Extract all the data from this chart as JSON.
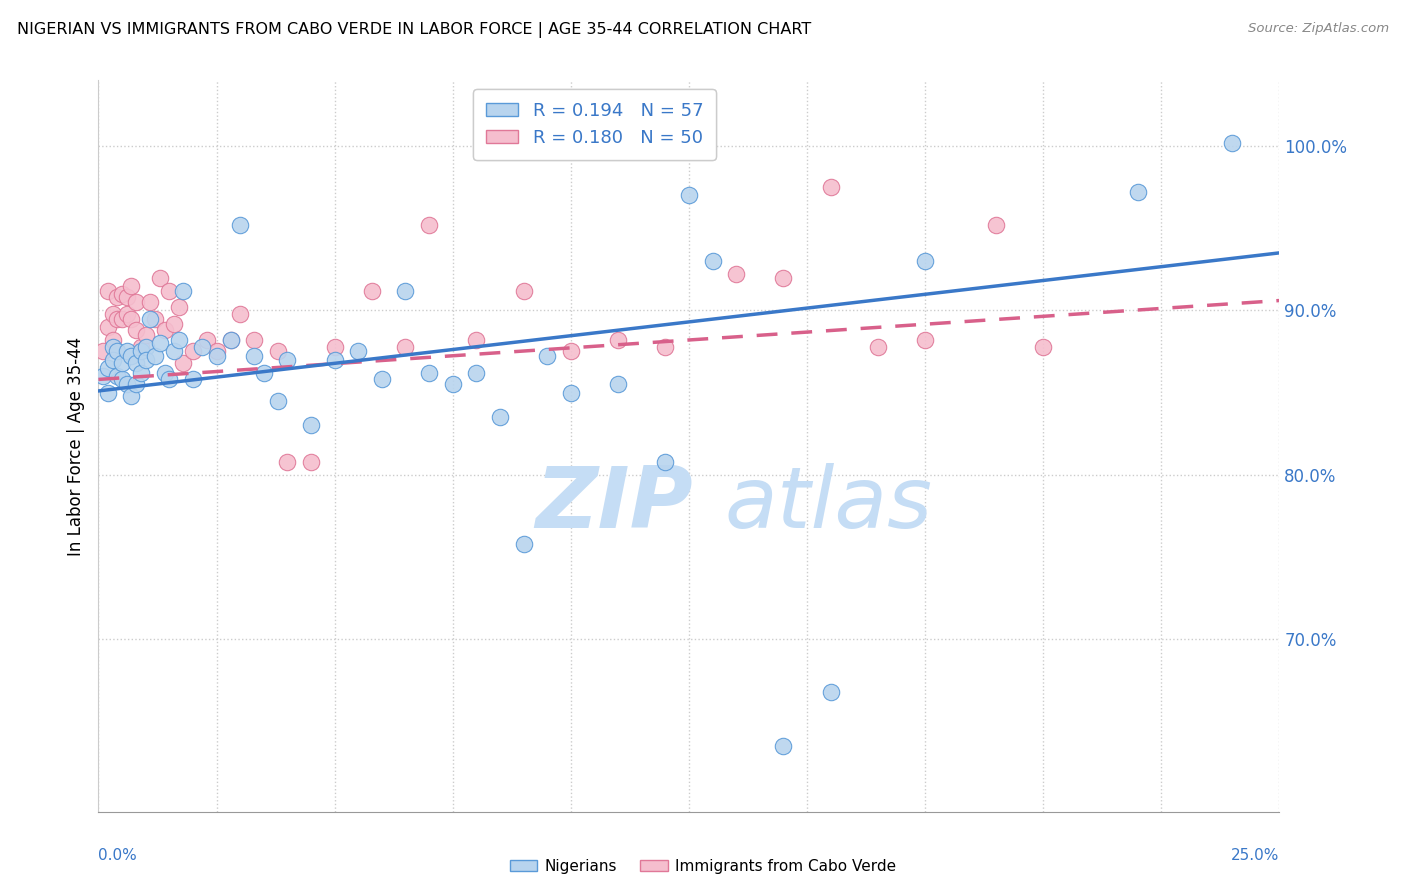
{
  "title": "NIGERIAN VS IMMIGRANTS FROM CABO VERDE IN LABOR FORCE | AGE 35-44 CORRELATION CHART",
  "source": "Source: ZipAtlas.com",
  "ylabel": "In Labor Force | Age 35-44",
  "xlim": [
    0.0,
    0.25
  ],
  "ylim": [
    0.595,
    1.04
  ],
  "yticks": [
    0.7,
    0.8,
    0.9,
    1.0
  ],
  "R_nigerian": 0.194,
  "N_nigerian": 57,
  "R_caboverde": 0.18,
  "N_caboverde": 50,
  "color_nigerian_face": "#b8d4ee",
  "color_nigerian_edge": "#5a9ad8",
  "color_caboverde_face": "#f5bece",
  "color_caboverde_edge": "#e07898",
  "line_color_nigerian": "#3a78c8",
  "line_color_caboverde": "#d8608a",
  "trend_nig_y0": 0.851,
  "trend_nig_y1": 0.935,
  "trend_cv_y0": 0.858,
  "trend_cv_y1": 0.906,
  "nigerian_x": [
    0.001,
    0.002,
    0.002,
    0.003,
    0.003,
    0.004,
    0.004,
    0.005,
    0.005,
    0.006,
    0.006,
    0.007,
    0.007,
    0.008,
    0.008,
    0.009,
    0.009,
    0.01,
    0.01,
    0.011,
    0.012,
    0.013,
    0.014,
    0.015,
    0.016,
    0.017,
    0.018,
    0.02,
    0.022,
    0.025,
    0.028,
    0.03,
    0.033,
    0.035,
    0.038,
    0.04,
    0.045,
    0.05,
    0.055,
    0.06,
    0.065,
    0.07,
    0.075,
    0.08,
    0.085,
    0.09,
    0.095,
    0.1,
    0.11,
    0.12,
    0.125,
    0.13,
    0.145,
    0.155,
    0.175,
    0.22,
    0.24
  ],
  "nigerian_y": [
    0.86,
    0.865,
    0.85,
    0.878,
    0.87,
    0.86,
    0.875,
    0.858,
    0.868,
    0.855,
    0.875,
    0.848,
    0.872,
    0.855,
    0.868,
    0.875,
    0.862,
    0.878,
    0.87,
    0.895,
    0.872,
    0.88,
    0.862,
    0.858,
    0.875,
    0.882,
    0.912,
    0.858,
    0.878,
    0.872,
    0.882,
    0.952,
    0.872,
    0.862,
    0.845,
    0.87,
    0.83,
    0.87,
    0.875,
    0.858,
    0.912,
    0.862,
    0.855,
    0.862,
    0.835,
    0.758,
    0.872,
    0.85,
    0.855,
    0.808,
    0.97,
    0.93,
    0.635,
    0.668,
    0.93,
    0.972,
    1.002
  ],
  "caboverde_x": [
    0.001,
    0.002,
    0.002,
    0.003,
    0.003,
    0.004,
    0.004,
    0.005,
    0.005,
    0.006,
    0.006,
    0.007,
    0.007,
    0.008,
    0.008,
    0.009,
    0.01,
    0.011,
    0.012,
    0.013,
    0.014,
    0.015,
    0.016,
    0.017,
    0.018,
    0.02,
    0.023,
    0.025,
    0.028,
    0.03,
    0.033,
    0.038,
    0.04,
    0.045,
    0.05,
    0.058,
    0.065,
    0.07,
    0.08,
    0.09,
    0.1,
    0.11,
    0.12,
    0.135,
    0.145,
    0.155,
    0.165,
    0.175,
    0.19,
    0.2
  ],
  "caboverde_y": [
    0.875,
    0.912,
    0.89,
    0.898,
    0.882,
    0.908,
    0.895,
    0.91,
    0.895,
    0.908,
    0.898,
    0.915,
    0.895,
    0.905,
    0.888,
    0.878,
    0.885,
    0.905,
    0.895,
    0.92,
    0.888,
    0.912,
    0.892,
    0.902,
    0.868,
    0.875,
    0.882,
    0.875,
    0.882,
    0.898,
    0.882,
    0.875,
    0.808,
    0.808,
    0.878,
    0.912,
    0.878,
    0.952,
    0.882,
    0.912,
    0.875,
    0.882,
    0.878,
    0.922,
    0.92,
    0.975,
    0.878,
    0.882,
    0.952,
    0.878
  ]
}
